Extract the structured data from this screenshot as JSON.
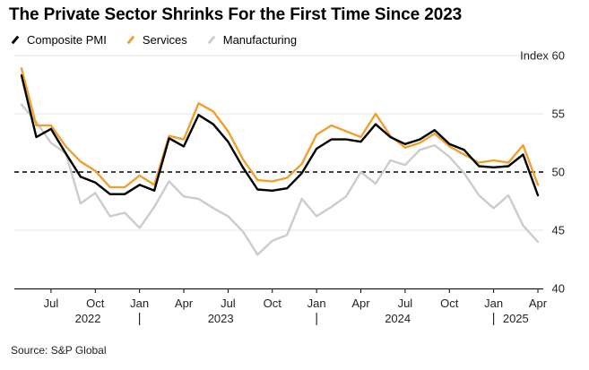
{
  "title": "The Private Sector Shrinks For the First Time Since 2023",
  "source": "Source: S&P Global",
  "colors": {
    "composite": "#000000",
    "services": "#f0a030",
    "manufacturing": "#cccccc",
    "threshold": "#000000"
  },
  "chart_data": {
    "type": "line",
    "ylabel": "Index",
    "ylim": [
      40,
      60
    ],
    "yticks": [
      40,
      45,
      50,
      55,
      60
    ],
    "yticklabels": [
      "40",
      "45",
      "50",
      "55",
      "Index 60"
    ],
    "x_months": [
      "2022-05",
      "2022-06",
      "2022-07",
      "2022-08",
      "2022-09",
      "2022-10",
      "2022-11",
      "2022-12",
      "2023-01",
      "2023-02",
      "2023-03",
      "2023-04",
      "2023-05",
      "2023-06",
      "2023-07",
      "2023-08",
      "2023-09",
      "2023-10",
      "2023-11",
      "2023-12",
      "2024-01",
      "2024-02",
      "2024-03",
      "2024-04",
      "2024-05",
      "2024-06",
      "2024-07",
      "2024-08",
      "2024-09",
      "2024-10",
      "2024-11",
      "2024-12",
      "2025-01",
      "2025-02",
      "2025-03",
      "2025-04"
    ],
    "month_ticks": [
      "Jul",
      "Oct",
      "Jan",
      "Apr",
      "Jul",
      "Oct",
      "Jan",
      "Apr",
      "Jul",
      "Oct",
      "Jan",
      "Apr"
    ],
    "year_labels": [
      "2022",
      "2023",
      "2024",
      "2025"
    ],
    "reference_line": 50,
    "grid": "horizontal",
    "legend_position": "top-left",
    "series": [
      {
        "name": "Composite PMI",
        "values": [
          58.3,
          53.0,
          53.7,
          51.6,
          49.6,
          49.1,
          48.1,
          48.1,
          48.9,
          48.4,
          52.9,
          52.2,
          54.9,
          54.1,
          52.6,
          50.4,
          48.5,
          48.4,
          48.6,
          49.9,
          52.0,
          52.8,
          52.8,
          52.6,
          54.1,
          53.0,
          52.4,
          52.8,
          53.6,
          52.4,
          51.9,
          50.5,
          50.4,
          50.5,
          51.5,
          48.0
        ]
      },
      {
        "name": "Services",
        "values": [
          58.9,
          54.0,
          54.0,
          52.2,
          50.9,
          50.1,
          48.7,
          48.7,
          49.7,
          48.9,
          53.1,
          52.8,
          55.9,
          55.2,
          53.5,
          51.1,
          49.3,
          49.2,
          49.5,
          50.7,
          53.2,
          54.0,
          53.5,
          53.0,
          55.0,
          53.1,
          52.1,
          52.5,
          53.3,
          52.2,
          51.5,
          50.8,
          51.0,
          50.8,
          52.3,
          48.9
        ]
      },
      {
        "name": "Manufacturing",
        "values": [
          55.8,
          54.3,
          52.5,
          51.6,
          47.3,
          48.2,
          46.2,
          46.5,
          45.2,
          47.0,
          49.2,
          47.9,
          47.7,
          46.9,
          46.2,
          44.9,
          42.9,
          44.1,
          44.6,
          47.7,
          46.2,
          47.0,
          47.9,
          50.0,
          49.0,
          51.0,
          50.6,
          51.9,
          52.3,
          51.3,
          49.9,
          48.0,
          46.9,
          48.0,
          45.4,
          44.0
        ]
      }
    ]
  }
}
